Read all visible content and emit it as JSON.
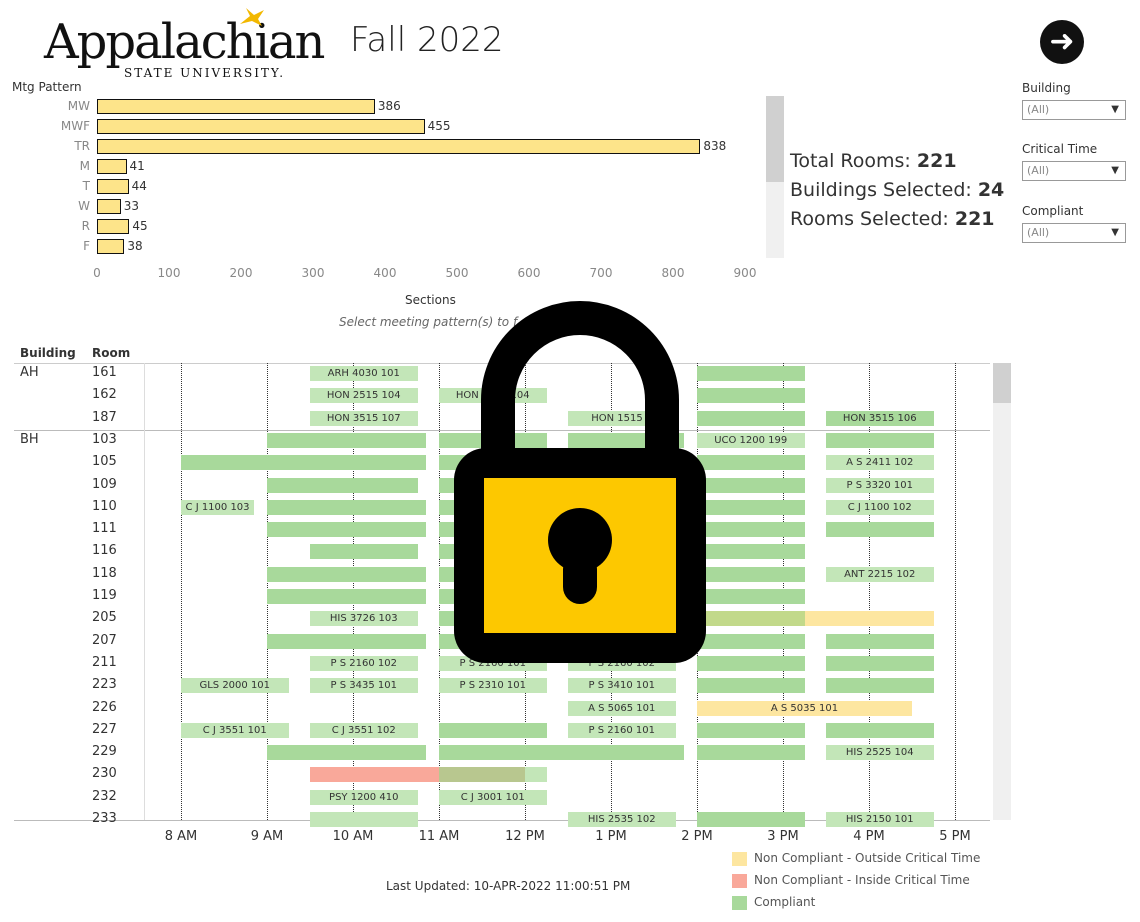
{
  "header": {
    "logo_main": "Appalachian",
    "logo_sub": "STATE UNIVERSITY.",
    "term": "Fall 2022",
    "next_icon": "arrow-right-circle-icon"
  },
  "bar_chart": {
    "axis_title": "Mtg Pattern",
    "xlabel": "Sections",
    "hint": "Select meeting pattern(s) to f",
    "ticks": [
      "0",
      "100",
      "200",
      "300",
      "400",
      "500",
      "600",
      "700",
      "800",
      "900"
    ],
    "rows": [
      {
        "label": "MW",
        "value": 386,
        "value_text": "386"
      },
      {
        "label": "MWF",
        "value": 455,
        "value_text": "455"
      },
      {
        "label": "TR",
        "value": 838,
        "value_text": "838"
      },
      {
        "label": "M",
        "value": 41,
        "value_text": "41"
      },
      {
        "label": "T",
        "value": 44,
        "value_text": "44"
      },
      {
        "label": "W",
        "value": 33,
        "value_text": "33"
      },
      {
        "label": "R",
        "value": 45,
        "value_text": "45"
      },
      {
        "label": "F",
        "value": 38,
        "value_text": "38"
      }
    ]
  },
  "stats": {
    "total_rooms_label": "Total Rooms:",
    "total_rooms": "221",
    "buildings_label": "Buildings Selected:",
    "buildings": "24",
    "rooms_label": "Rooms Selected:",
    "rooms": "221"
  },
  "filters": {
    "building_label": "Building",
    "building_value": "(All)",
    "critical_label": "Critical Time",
    "critical_value": "(All)",
    "compliant_label": "Compliant",
    "compliant_value": "(All)"
  },
  "schedule": {
    "building_header": "Building",
    "room_header": "Room",
    "time_labels": [
      "8 AM",
      "9 AM",
      "10 AM",
      "11 AM",
      "12 PM",
      "1 PM",
      "2 PM",
      "3 PM",
      "4 PM",
      "5 PM"
    ],
    "colors": {
      "compliant": "#a8d99b",
      "compliant_light": "#c3e6b8",
      "outside": "#fde6a0",
      "inside": "#f9a89a",
      "mixed": "#b8c78f",
      "overlap": "#c2d98a"
    },
    "rows": [
      {
        "building": "AH",
        "room": "161",
        "blocks": [
          {
            "s": 9.5,
            "e": 10.75,
            "c": "compliant_light",
            "t": "ARH 4030 101"
          },
          {
            "s": 14,
            "e": 15.25,
            "c": "compliant",
            "t": ""
          }
        ]
      },
      {
        "building": "",
        "room": "162",
        "blocks": [
          {
            "s": 9.5,
            "e": 10.75,
            "c": "compliant_light",
            "t": "HON 2515 104"
          },
          {
            "s": 11,
            "e": 12.25,
            "c": "compliant_light",
            "t": "HON 2515 104"
          },
          {
            "s": 14,
            "e": 15.25,
            "c": "compliant",
            "t": ""
          }
        ]
      },
      {
        "building": "",
        "room": "187",
        "blocks": [
          {
            "s": 9.5,
            "e": 10.75,
            "c": "compliant_light",
            "t": "HON 3515 107"
          },
          {
            "s": 12.5,
            "e": 13.75,
            "c": "compliant_light",
            "t": "HON 1515 1"
          },
          {
            "s": 14,
            "e": 15.25,
            "c": "compliant",
            "t": ""
          },
          {
            "s": 15.5,
            "e": 16.75,
            "c": "compliant",
            "t": "HON 3515 106"
          }
        ]
      },
      {
        "building": "BH",
        "room": "103",
        "blocks": [
          {
            "s": 9,
            "e": 10.85,
            "c": "compliant",
            "t": ""
          },
          {
            "s": 11,
            "e": 12.25,
            "c": "compliant",
            "t": ""
          },
          {
            "s": 12.5,
            "e": 13.85,
            "c": "compliant",
            "t": ""
          },
          {
            "s": 14,
            "e": 15.25,
            "c": "compliant_light",
            "t": "UCO 1200 199"
          },
          {
            "s": 15.5,
            "e": 16.75,
            "c": "compliant",
            "t": ""
          }
        ]
      },
      {
        "building": "",
        "room": "105",
        "blocks": [
          {
            "s": 8,
            "e": 10.85,
            "c": "compliant",
            "t": ""
          },
          {
            "s": 11,
            "e": 12.25,
            "c": "compliant",
            "t": ""
          },
          {
            "s": 14,
            "e": 15.25,
            "c": "compliant",
            "t": ""
          },
          {
            "s": 15.5,
            "e": 16.75,
            "c": "compliant_light",
            "t": "A S 2411 102"
          }
        ]
      },
      {
        "building": "",
        "room": "109",
        "blocks": [
          {
            "s": 9,
            "e": 10.75,
            "c": "compliant",
            "t": ""
          },
          {
            "s": 11,
            "e": 12.25,
            "c": "compliant",
            "t": ""
          },
          {
            "s": 14,
            "e": 15.25,
            "c": "compliant",
            "t": ""
          },
          {
            "s": 15.5,
            "e": 16.75,
            "c": "compliant_light",
            "t": "P S 3320 101"
          }
        ]
      },
      {
        "building": "",
        "room": "110",
        "blocks": [
          {
            "s": 8,
            "e": 8.85,
            "c": "compliant_light",
            "t": "C J 1100 103"
          },
          {
            "s": 9,
            "e": 10.85,
            "c": "compliant",
            "t": ""
          },
          {
            "s": 11,
            "e": 12.25,
            "c": "compliant",
            "t": ""
          },
          {
            "s": 14,
            "e": 15.25,
            "c": "compliant",
            "t": ""
          },
          {
            "s": 15.5,
            "e": 16.75,
            "c": "compliant_light",
            "t": "C J 1100 102"
          }
        ]
      },
      {
        "building": "",
        "room": "111",
        "blocks": [
          {
            "s": 9,
            "e": 10.85,
            "c": "compliant",
            "t": ""
          },
          {
            "s": 11,
            "e": 12.25,
            "c": "compliant",
            "t": ""
          },
          {
            "s": 14,
            "e": 15.25,
            "c": "compliant",
            "t": ""
          },
          {
            "s": 15.5,
            "e": 16.75,
            "c": "compliant",
            "t": ""
          }
        ]
      },
      {
        "building": "",
        "room": "116",
        "blocks": [
          {
            "s": 9.5,
            "e": 10.75,
            "c": "compliant",
            "t": ""
          },
          {
            "s": 11,
            "e": 12.25,
            "c": "compliant",
            "t": ""
          },
          {
            "s": 14,
            "e": 15.25,
            "c": "compliant",
            "t": ""
          }
        ]
      },
      {
        "building": "",
        "room": "118",
        "blocks": [
          {
            "s": 9,
            "e": 10.85,
            "c": "compliant",
            "t": ""
          },
          {
            "s": 11,
            "e": 12.25,
            "c": "compliant",
            "t": ""
          },
          {
            "s": 14,
            "e": 15.25,
            "c": "compliant",
            "t": ""
          },
          {
            "s": 15.5,
            "e": 16.75,
            "c": "compliant_light",
            "t": "ANT 2215 102"
          }
        ]
      },
      {
        "building": "",
        "room": "119",
        "blocks": [
          {
            "s": 9,
            "e": 10.85,
            "c": "compliant",
            "t": ""
          },
          {
            "s": 11,
            "e": 12.25,
            "c": "compliant",
            "t": ""
          },
          {
            "s": 14,
            "e": 15.25,
            "c": "compliant",
            "t": ""
          }
        ]
      },
      {
        "building": "",
        "room": "205",
        "blocks": [
          {
            "s": 9.5,
            "e": 10.75,
            "c": "compliant_light",
            "t": "HIS 3726 103"
          },
          {
            "s": 11,
            "e": 12.25,
            "c": "compliant",
            "t": ""
          },
          {
            "s": 14,
            "e": 15.25,
            "c": "overlap",
            "t": ""
          },
          {
            "s": 15.25,
            "e": 16.75,
            "c": "outside",
            "t": ""
          }
        ]
      },
      {
        "building": "",
        "room": "207",
        "blocks": [
          {
            "s": 9,
            "e": 10.85,
            "c": "compliant",
            "t": ""
          },
          {
            "s": 11,
            "e": 12.25,
            "c": "compliant",
            "t": ""
          },
          {
            "s": 14,
            "e": 15.25,
            "c": "compliant",
            "t": ""
          },
          {
            "s": 15.5,
            "e": 16.75,
            "c": "compliant",
            "t": ""
          }
        ]
      },
      {
        "building": "",
        "room": "211",
        "blocks": [
          {
            "s": 9.5,
            "e": 10.75,
            "c": "compliant_light",
            "t": "P S 2160 102"
          },
          {
            "s": 11,
            "e": 12.25,
            "c": "compliant_light",
            "t": "P S 2160 101"
          },
          {
            "s": 12.5,
            "e": 13.75,
            "c": "compliant_light",
            "t": "P S 2160 102"
          },
          {
            "s": 14,
            "e": 15.25,
            "c": "compliant",
            "t": ""
          },
          {
            "s": 15.5,
            "e": 16.75,
            "c": "compliant",
            "t": ""
          }
        ]
      },
      {
        "building": "",
        "room": "223",
        "blocks": [
          {
            "s": 8,
            "e": 9.25,
            "c": "compliant_light",
            "t": "GLS 2000 101"
          },
          {
            "s": 9.5,
            "e": 10.75,
            "c": "compliant_light",
            "t": "P S 3435 101"
          },
          {
            "s": 11,
            "e": 12.25,
            "c": "compliant_light",
            "t": "P S 2310 101"
          },
          {
            "s": 12.5,
            "e": 13.75,
            "c": "compliant_light",
            "t": "P S 3410 101"
          },
          {
            "s": 14,
            "e": 15.25,
            "c": "compliant",
            "t": ""
          },
          {
            "s": 15.5,
            "e": 16.75,
            "c": "compliant",
            "t": ""
          }
        ]
      },
      {
        "building": "",
        "room": "226",
        "blocks": [
          {
            "s": 12.5,
            "e": 13.75,
            "c": "compliant_light",
            "t": "A S 5065 101"
          },
          {
            "s": 14,
            "e": 16.5,
            "c": "outside",
            "t": "A S 5035 101"
          }
        ]
      },
      {
        "building": "",
        "room": "227",
        "blocks": [
          {
            "s": 8,
            "e": 9.25,
            "c": "compliant_light",
            "t": "C J 3551 101"
          },
          {
            "s": 9.5,
            "e": 10.75,
            "c": "compliant_light",
            "t": "C J 3551 102"
          },
          {
            "s": 11,
            "e": 12.25,
            "c": "compliant",
            "t": ""
          },
          {
            "s": 12.5,
            "e": 13.75,
            "c": "compliant_light",
            "t": "P S 2160 101"
          },
          {
            "s": 14,
            "e": 15.25,
            "c": "compliant",
            "t": ""
          },
          {
            "s": 15.5,
            "e": 16.75,
            "c": "compliant",
            "t": ""
          }
        ]
      },
      {
        "building": "",
        "room": "229",
        "blocks": [
          {
            "s": 9,
            "e": 10.85,
            "c": "compliant",
            "t": ""
          },
          {
            "s": 11,
            "e": 13.85,
            "c": "compliant",
            "t": ""
          },
          {
            "s": 14,
            "e": 15.25,
            "c": "compliant",
            "t": ""
          },
          {
            "s": 15.5,
            "e": 16.75,
            "c": "compliant_light",
            "t": "HIS 2525 104"
          }
        ]
      },
      {
        "building": "",
        "room": "230",
        "blocks": [
          {
            "s": 9.5,
            "e": 11,
            "c": "inside",
            "t": ""
          },
          {
            "s": 11,
            "e": 12,
            "c": "mixed",
            "t": ""
          },
          {
            "s": 12,
            "e": 12.25,
            "c": "compliant_light",
            "t": ""
          }
        ]
      },
      {
        "building": "",
        "room": "232",
        "blocks": [
          {
            "s": 9.5,
            "e": 10.75,
            "c": "compliant_light",
            "t": "PSY 1200 410"
          },
          {
            "s": 11,
            "e": 12.25,
            "c": "compliant_light",
            "t": "C J 3001 101"
          }
        ]
      },
      {
        "building": "",
        "room": "233",
        "blocks": [
          {
            "s": 9.5,
            "e": 10.75,
            "c": "compliant_light",
            "t": ""
          },
          {
            "s": 12.5,
            "e": 13.75,
            "c": "compliant_light",
            "t": "HIS 2535 102"
          },
          {
            "s": 14,
            "e": 15.25,
            "c": "compliant",
            "t": ""
          },
          {
            "s": 15.5,
            "e": 16.75,
            "c": "compliant_light",
            "t": "HIS 2150 101"
          }
        ]
      }
    ]
  },
  "legend": [
    {
      "label": "Non Compliant - Outside Critical Time",
      "color": "#fde6a0"
    },
    {
      "label": "Non Compliant - Inside Critical Time",
      "color": "#f9a89a"
    },
    {
      "label": "Compliant",
      "color": "#a8d99b"
    }
  ],
  "footer": {
    "updated_label": "Last Updated:",
    "updated_value": "10-APR-2022 11:00:51 PM"
  },
  "overlay": {
    "icon": "padlock-icon"
  }
}
